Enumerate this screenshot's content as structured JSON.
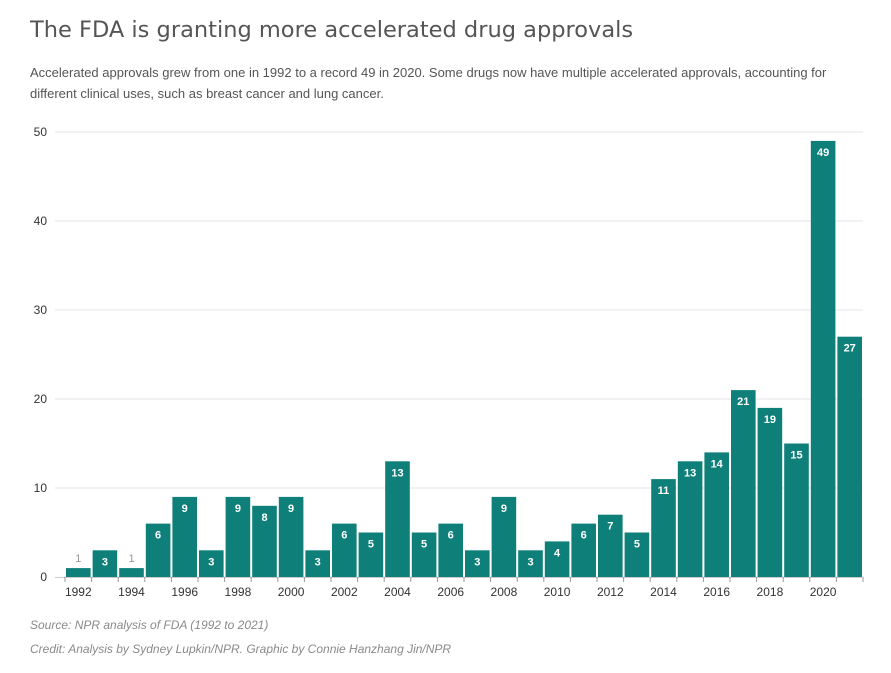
{
  "header": {
    "title": "The FDA is granting more accelerated drug approvals",
    "subtitle": "Accelerated approvals grew from one in 1992 to a record 49 in 2020. Some drugs now have multiple accelerated approvals, accounting for different clinical uses, such as breast cancer and lung cancer."
  },
  "footer": {
    "source": "Source: NPR analysis of FDA (1992 to 2021)",
    "credit": "Credit: Analysis by Sydney Lupkin/NPR. Graphic by Connie Hanzhang Jin/NPR"
  },
  "colors": {
    "bar": "#0e8079",
    "grid": "#e6e6e6",
    "axis_text": "#333333",
    "label_inside": "#ffffff",
    "label_outside": "#999999"
  },
  "chart_data": {
    "type": "bar",
    "title": "The FDA is granting more accelerated drug approvals",
    "xlabel": "",
    "ylabel": "",
    "ylim": [
      0,
      50
    ],
    "yticks": [
      0,
      10,
      20,
      30,
      40,
      50
    ],
    "grid": true,
    "categories": [
      "1992",
      "1993",
      "1994",
      "1995",
      "1996",
      "1997",
      "1998",
      "1999",
      "2000",
      "2001",
      "2002",
      "2003",
      "2004",
      "2005",
      "2006",
      "2007",
      "2008",
      "2009",
      "2010",
      "2011",
      "2012",
      "2013",
      "2014",
      "2015",
      "2016",
      "2017",
      "2018",
      "2019",
      "2020",
      "2021"
    ],
    "xtick_labels": [
      "1992",
      "1994",
      "1996",
      "1998",
      "2000",
      "2002",
      "2004",
      "2006",
      "2008",
      "2010",
      "2012",
      "2014",
      "2016",
      "2018",
      "2020"
    ],
    "values": [
      1,
      3,
      1,
      6,
      9,
      3,
      9,
      8,
      9,
      3,
      6,
      5,
      13,
      5,
      6,
      3,
      9,
      3,
      4,
      6,
      7,
      5,
      11,
      13,
      14,
      21,
      19,
      15,
      49,
      27
    ]
  }
}
